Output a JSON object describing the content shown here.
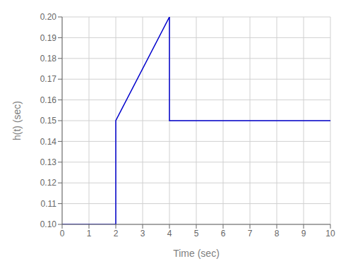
{
  "chart_data": {
    "type": "line",
    "x": [
      0,
      2,
      2,
      4,
      4,
      10
    ],
    "values": [
      0.1,
      0.1,
      0.15,
      0.2,
      0.15,
      0.15
    ],
    "color": "#0000CC",
    "xlim": [
      0,
      10
    ],
    "ylim": [
      0.1,
      0.2
    ],
    "xticks": [
      0,
      1,
      2,
      3,
      4,
      5,
      6,
      7,
      8,
      9,
      10
    ],
    "yticks": [
      {
        "value": 0.1,
        "label": "0.10"
      },
      0.11,
      0.12,
      0.13,
      0.14,
      0.15,
      0.16,
      0.17,
      0.18,
      0.19,
      {
        "value": 0.2,
        "label": "0.20"
      }
    ],
    "xlabel": "Time (sec)",
    "ylabel": "h(t) (sec)",
    "grid": true
  }
}
